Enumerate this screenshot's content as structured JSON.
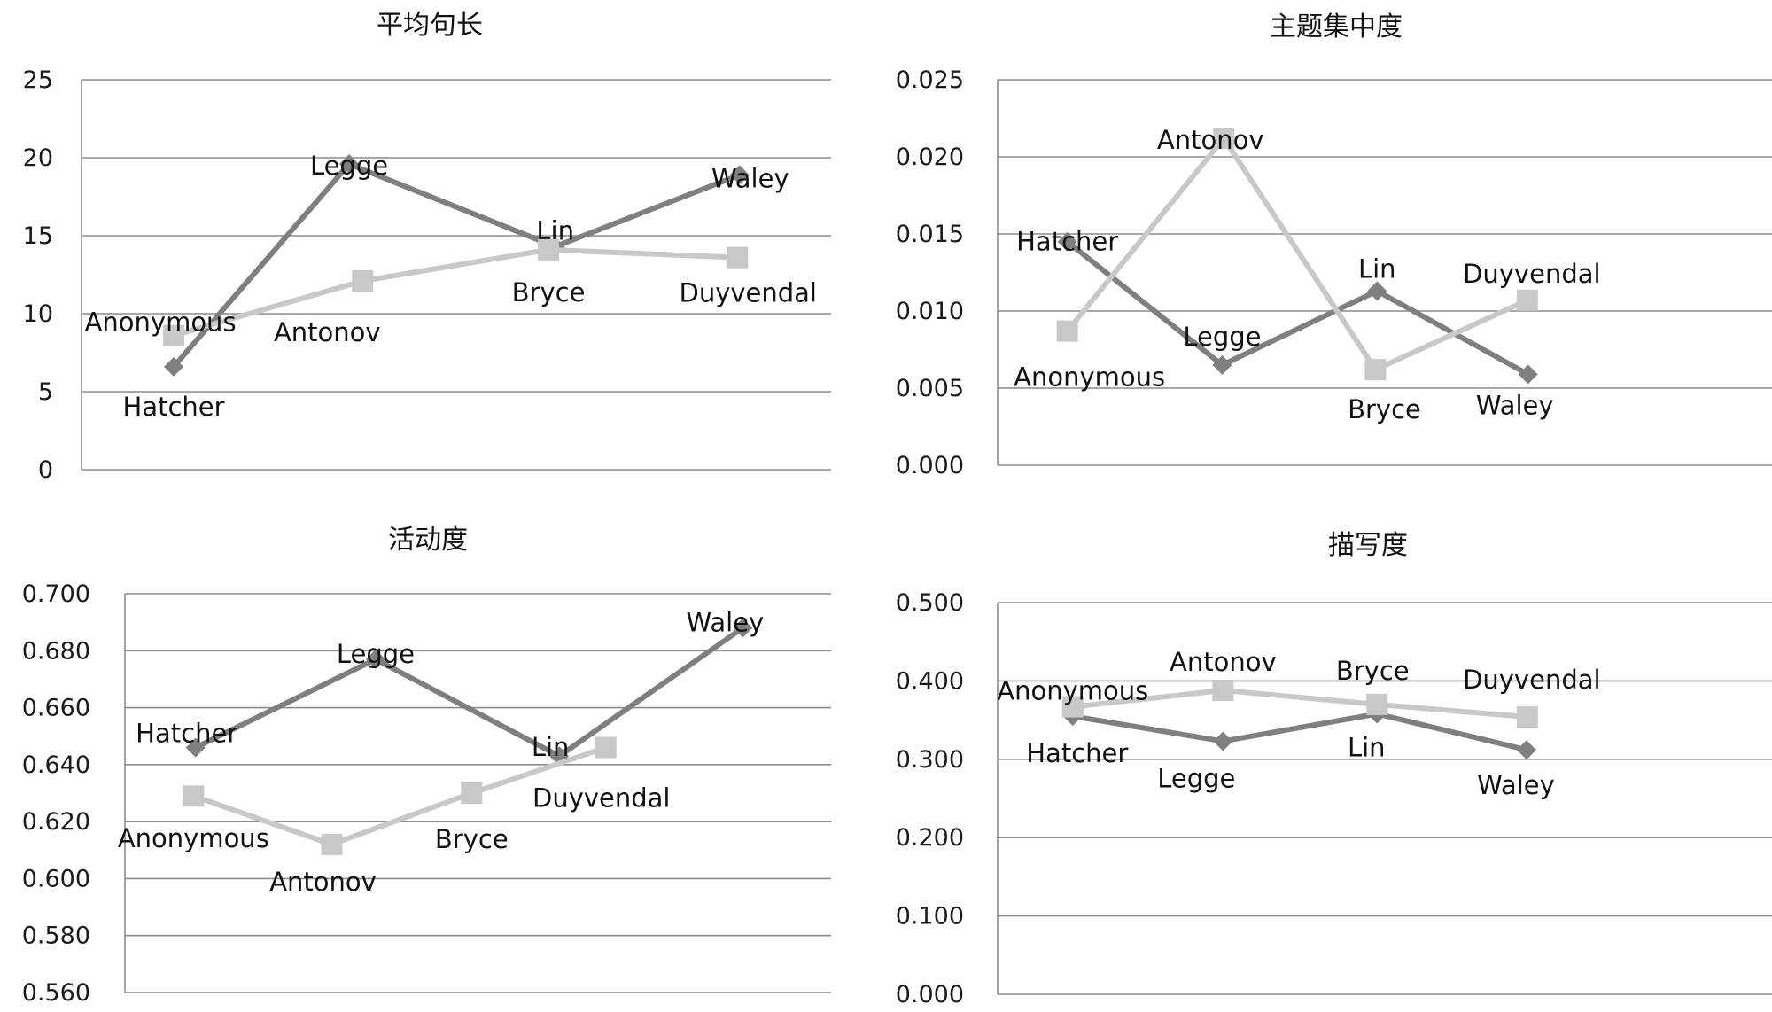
{
  "colors": {
    "dark_series": "#7f7f7f",
    "light_series": "#c8c8c8",
    "grid": "#8c8c8c",
    "text": "#111111"
  },
  "chart_data": [
    {
      "type": "line",
      "title": "平均句长",
      "ylim": [
        0,
        25
      ],
      "yticks": [
        "0",
        "5",
        "10",
        "15",
        "20",
        "25"
      ],
      "grid": true,
      "series": [
        {
          "style": "dark-diamond",
          "labels": [
            "Hatcher",
            "Legge",
            "Lin",
            "Waley"
          ],
          "values": [
            6.6,
            19.6,
            14.3,
            18.9
          ]
        },
        {
          "style": "light-square",
          "labels": [
            "Anonymous",
            "Antonov",
            "Bryce",
            "Duyvendal"
          ],
          "values": [
            8.6,
            12.1,
            14.1,
            13.6
          ]
        }
      ]
    },
    {
      "type": "line",
      "title": "主题集中度",
      "ylim": [
        0,
        0.025
      ],
      "yticks": [
        "0.000",
        "0.005",
        "0.010",
        "0.015",
        "0.020",
        "0.025"
      ],
      "grid": true,
      "series": [
        {
          "style": "dark-diamond",
          "labels": [
            "Hatcher",
            "Legge",
            "Lin",
            "Waley"
          ],
          "values": [
            0.0145,
            0.0065,
            0.0113,
            0.0059
          ]
        },
        {
          "style": "light-square",
          "labels": [
            "Anonymous",
            "Antonov",
            "Bryce",
            "Duyvendal"
          ],
          "values": [
            0.0087,
            0.0212,
            0.0062,
            0.0107
          ]
        }
      ]
    },
    {
      "type": "line",
      "title": "活动度",
      "ylim": [
        0.56,
        0.7
      ],
      "yticks": [
        "0.560",
        "0.580",
        "0.600",
        "0.620",
        "0.640",
        "0.660",
        "0.680",
        "0.700"
      ],
      "grid": true,
      "series": [
        {
          "style": "dark-diamond",
          "labels": [
            "Hatcher",
            "Legge",
            "Lin",
            "Waley"
          ],
          "values": [
            0.646,
            0.677,
            0.643,
            0.688
          ]
        },
        {
          "style": "light-square",
          "labels": [
            "Anonymous",
            "Antonov",
            "Bryce",
            "Duyvendal"
          ],
          "values": [
            0.629,
            0.612,
            0.63,
            0.646
          ]
        }
      ]
    },
    {
      "type": "line",
      "title": "描写度",
      "ylim": [
        0,
        0.5
      ],
      "yticks": [
        "0.000",
        "0.100",
        "0.200",
        "0.300",
        "0.400",
        "0.500"
      ],
      "grid": true,
      "series": [
        {
          "style": "dark-diamond",
          "labels": [
            "Hatcher",
            "Legge",
            "Lin",
            "Waley"
          ],
          "values": [
            0.355,
            0.323,
            0.358,
            0.312
          ]
        },
        {
          "style": "light-square",
          "labels": [
            "Anonymous",
            "Antonov",
            "Bryce",
            "Duyvendal"
          ],
          "values": [
            0.367,
            0.388,
            0.37,
            0.354
          ]
        }
      ]
    }
  ]
}
